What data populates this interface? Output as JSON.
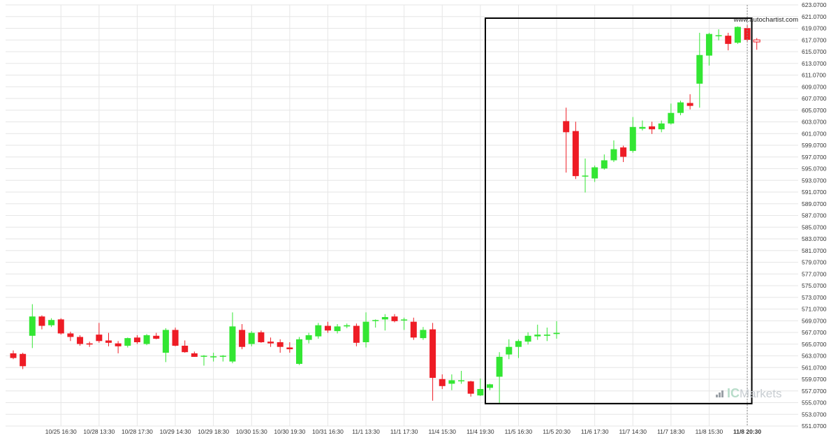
{
  "watermark": "www.autochartist.com",
  "brand": {
    "ic": "IC",
    "markets": "Markets"
  },
  "colors": {
    "up": "#33e633",
    "down": "#ee1c25",
    "grid": "#e6e6e6",
    "text": "#333333",
    "box": "#000000",
    "brand_ic": "#b7dcc9",
    "brand_markets": "#c8cdd2",
    "brand_bars": "#9aa0a6",
    "current_line": "#888888"
  },
  "chart_data": {
    "type": "candlestick",
    "title": "",
    "xlabel": "",
    "ylabel": "",
    "ylim": [
      551.07,
      623.07
    ],
    "y_ticks": [
      "551.0700",
      "553.0700",
      "555.0700",
      "557.0700",
      "559.0700",
      "561.0700",
      "563.0700",
      "565.0700",
      "567.0700",
      "569.0700",
      "571.0700",
      "573.0700",
      "575.0700",
      "577.0700",
      "579.0700",
      "581.0700",
      "583.0700",
      "585.0700",
      "587.0700",
      "589.0700",
      "591.0700",
      "593.0700",
      "595.0700",
      "597.0700",
      "599.0700",
      "601.0700",
      "603.0700",
      "605.0700",
      "607.0700",
      "609.0700",
      "611.0700",
      "613.0700",
      "615.0700",
      "617.0700",
      "619.0700",
      "621.0700",
      "623.0700"
    ],
    "x_ticks": [
      {
        "label": "10/25 16:30",
        "bar": 5
      },
      {
        "label": "10/28 13:30",
        "bar": 9
      },
      {
        "label": "10/28 17:30",
        "bar": 13
      },
      {
        "label": "10/29 14:30",
        "bar": 17
      },
      {
        "label": "10/29 18:30",
        "bar": 21
      },
      {
        "label": "10/30 15:30",
        "bar": 25
      },
      {
        "label": "10/30 19:30",
        "bar": 29
      },
      {
        "label": "10/31 16:30",
        "bar": 33
      },
      {
        "label": "11/1 13:30",
        "bar": 37
      },
      {
        "label": "11/1 17:30",
        "bar": 41
      },
      {
        "label": "11/4 15:30",
        "bar": 45
      },
      {
        "label": "11/4 19:30",
        "bar": 49
      },
      {
        "label": "11/5 16:30",
        "bar": 53
      },
      {
        "label": "11/5 20:30",
        "bar": 57
      },
      {
        "label": "11/6 17:30",
        "bar": 61
      },
      {
        "label": "11/7 14:30",
        "bar": 65
      },
      {
        "label": "11/7 18:30",
        "bar": 69
      },
      {
        "label": "11/8 15:30",
        "bar": 73
      },
      {
        "label": "11/8 20:30",
        "bar": 77,
        "bold": true
      }
    ],
    "pattern_box": {
      "start_bar": 50,
      "end_bar": 77,
      "top": 620.8,
      "bottom": 554.9
    },
    "candles": [
      {
        "o": 563.5,
        "h": 564.0,
        "l": 562.5,
        "c": 562.7
      },
      {
        "o": 563.4,
        "h": 563.6,
        "l": 560.8,
        "c": 561.3
      },
      {
        "o": 566.5,
        "h": 571.9,
        "l": 564.4,
        "c": 569.8
      },
      {
        "o": 569.8,
        "h": 570.0,
        "l": 567.6,
        "c": 568.2
      },
      {
        "o": 568.3,
        "h": 569.5,
        "l": 568.0,
        "c": 569.2
      },
      {
        "o": 569.3,
        "h": 569.5,
        "l": 566.7,
        "c": 566.9
      },
      {
        "o": 566.9,
        "h": 567.2,
        "l": 565.6,
        "c": 566.3
      },
      {
        "o": 566.3,
        "h": 566.6,
        "l": 564.8,
        "c": 565.1
      },
      {
        "o": 565.2,
        "h": 565.5,
        "l": 564.6,
        "c": 565.0
      },
      {
        "o": 566.7,
        "h": 568.7,
        "l": 565.3,
        "c": 565.6
      },
      {
        "o": 565.7,
        "h": 567.0,
        "l": 564.7,
        "c": 565.3
      },
      {
        "o": 565.2,
        "h": 565.6,
        "l": 563.5,
        "c": 564.7
      },
      {
        "o": 564.8,
        "h": 566.2,
        "l": 564.5,
        "c": 566.1
      },
      {
        "o": 566.2,
        "h": 566.6,
        "l": 565.1,
        "c": 565.4
      },
      {
        "o": 565.1,
        "h": 566.8,
        "l": 564.9,
        "c": 566.6
      },
      {
        "o": 566.5,
        "h": 567.0,
        "l": 565.9,
        "c": 566.0
      },
      {
        "o": 563.6,
        "h": 567.8,
        "l": 562.0,
        "c": 567.5
      },
      {
        "o": 567.5,
        "h": 567.9,
        "l": 564.7,
        "c": 564.8
      },
      {
        "o": 564.8,
        "h": 565.7,
        "l": 563.6,
        "c": 563.7
      },
      {
        "o": 563.5,
        "h": 563.8,
        "l": 562.9,
        "c": 562.9
      },
      {
        "o": 563.0,
        "h": 563.2,
        "l": 561.4,
        "c": 563.0
      },
      {
        "o": 562.9,
        "h": 563.6,
        "l": 562.1,
        "c": 562.9
      },
      {
        "o": 563.0,
        "h": 563.2,
        "l": 562.1,
        "c": 563.0
      },
      {
        "o": 562.1,
        "h": 570.5,
        "l": 561.8,
        "c": 568.1
      },
      {
        "o": 567.5,
        "h": 568.5,
        "l": 564.2,
        "c": 564.6
      },
      {
        "o": 565.1,
        "h": 567.3,
        "l": 564.7,
        "c": 567.0
      },
      {
        "o": 567.1,
        "h": 567.4,
        "l": 565.3,
        "c": 565.4
      },
      {
        "o": 565.5,
        "h": 566.2,
        "l": 564.6,
        "c": 565.2
      },
      {
        "o": 565.4,
        "h": 565.9,
        "l": 563.6,
        "c": 564.6
      },
      {
        "o": 564.5,
        "h": 565.4,
        "l": 563.6,
        "c": 564.2
      },
      {
        "o": 561.7,
        "h": 566.3,
        "l": 561.5,
        "c": 565.9
      },
      {
        "o": 565.8,
        "h": 567.0,
        "l": 565.2,
        "c": 566.6
      },
      {
        "o": 566.4,
        "h": 568.7,
        "l": 566.0,
        "c": 568.3
      },
      {
        "o": 568.2,
        "h": 568.9,
        "l": 567.0,
        "c": 567.4
      },
      {
        "o": 567.3,
        "h": 568.5,
        "l": 566.9,
        "c": 568.1
      },
      {
        "o": 568.1,
        "h": 568.6,
        "l": 567.8,
        "c": 568.3
      },
      {
        "o": 568.2,
        "h": 568.6,
        "l": 564.7,
        "c": 565.3
      },
      {
        "o": 565.4,
        "h": 570.5,
        "l": 564.5,
        "c": 568.9
      },
      {
        "o": 569.0,
        "h": 569.3,
        "l": 567.9,
        "c": 569.1
      },
      {
        "o": 569.3,
        "h": 570.2,
        "l": 567.4,
        "c": 569.7
      },
      {
        "o": 569.8,
        "h": 570.2,
        "l": 568.8,
        "c": 569.0
      },
      {
        "o": 569.2,
        "h": 569.6,
        "l": 567.5,
        "c": 569.2
      },
      {
        "o": 568.9,
        "h": 569.6,
        "l": 565.8,
        "c": 566.2
      },
      {
        "o": 566.1,
        "h": 568.0,
        "l": 565.8,
        "c": 567.5
      },
      {
        "o": 567.6,
        "h": 568.7,
        "l": 555.4,
        "c": 559.3
      },
      {
        "o": 559.1,
        "h": 559.9,
        "l": 557.4,
        "c": 557.9
      },
      {
        "o": 558.3,
        "h": 559.9,
        "l": 557.2,
        "c": 558.9
      },
      {
        "o": 558.8,
        "h": 560.5,
        "l": 558.3,
        "c": 558.8
      },
      {
        "o": 558.7,
        "h": 558.8,
        "l": 556.1,
        "c": 556.6
      },
      {
        "o": 556.3,
        "h": 559.2,
        "l": 556.2,
        "c": 557.4
      },
      {
        "o": 557.6,
        "h": 558.3,
        "l": 557.2,
        "c": 558.2
      },
      {
        "o": 559.5,
        "h": 563.7,
        "l": 554.9,
        "c": 562.9
      },
      {
        "o": 563.3,
        "h": 565.9,
        "l": 562.5,
        "c": 564.6
      },
      {
        "o": 564.6,
        "h": 565.9,
        "l": 562.7,
        "c": 565.6
      },
      {
        "o": 565.5,
        "h": 567.1,
        "l": 565.0,
        "c": 566.5
      },
      {
        "o": 566.4,
        "h": 568.4,
        "l": 565.8,
        "c": 566.7
      },
      {
        "o": 566.5,
        "h": 567.9,
        "l": 565.6,
        "c": 566.7
      },
      {
        "o": 566.8,
        "h": 569.0,
        "l": 566.0,
        "c": 567.0
      },
      {
        "o": 603.2,
        "h": 605.5,
        "l": 594.4,
        "c": 601.3
      },
      {
        "o": 601.5,
        "h": 603.1,
        "l": 593.3,
        "c": 593.8
      },
      {
        "o": 593.7,
        "h": 596.8,
        "l": 591.0,
        "c": 593.8
      },
      {
        "o": 593.4,
        "h": 595.6,
        "l": 592.8,
        "c": 595.3
      },
      {
        "o": 595.1,
        "h": 597.5,
        "l": 594.9,
        "c": 596.5
      },
      {
        "o": 596.5,
        "h": 599.9,
        "l": 596.2,
        "c": 598.4
      },
      {
        "o": 598.7,
        "h": 599.0,
        "l": 596.2,
        "c": 597.1
      },
      {
        "o": 598.1,
        "h": 603.9,
        "l": 597.8,
        "c": 602.2
      },
      {
        "o": 601.9,
        "h": 603.3,
        "l": 601.6,
        "c": 602.2
      },
      {
        "o": 602.3,
        "h": 603.1,
        "l": 601.0,
        "c": 601.8
      },
      {
        "o": 601.8,
        "h": 603.3,
        "l": 601.3,
        "c": 602.8
      },
      {
        "o": 602.8,
        "h": 606.2,
        "l": 602.6,
        "c": 604.6
      },
      {
        "o": 604.6,
        "h": 606.7,
        "l": 604.2,
        "c": 606.4
      },
      {
        "o": 606.3,
        "h": 607.8,
        "l": 605.2,
        "c": 605.8
      },
      {
        "o": 609.6,
        "h": 618.3,
        "l": 605.5,
        "c": 614.5
      },
      {
        "o": 614.4,
        "h": 618.3,
        "l": 612.7,
        "c": 618.1
      },
      {
        "o": 617.8,
        "h": 618.9,
        "l": 617.0,
        "c": 617.8
      },
      {
        "o": 617.8,
        "h": 618.3,
        "l": 615.3,
        "c": 616.4
      },
      {
        "o": 616.6,
        "h": 619.4,
        "l": 616.4,
        "c": 619.3
      },
      {
        "o": 619.1,
        "h": 619.7,
        "l": 616.8,
        "c": 617.1
      },
      {
        "o": 617.0,
        "h": 617.4,
        "l": 615.4,
        "c": 616.9,
        "hollow": true
      }
    ]
  }
}
